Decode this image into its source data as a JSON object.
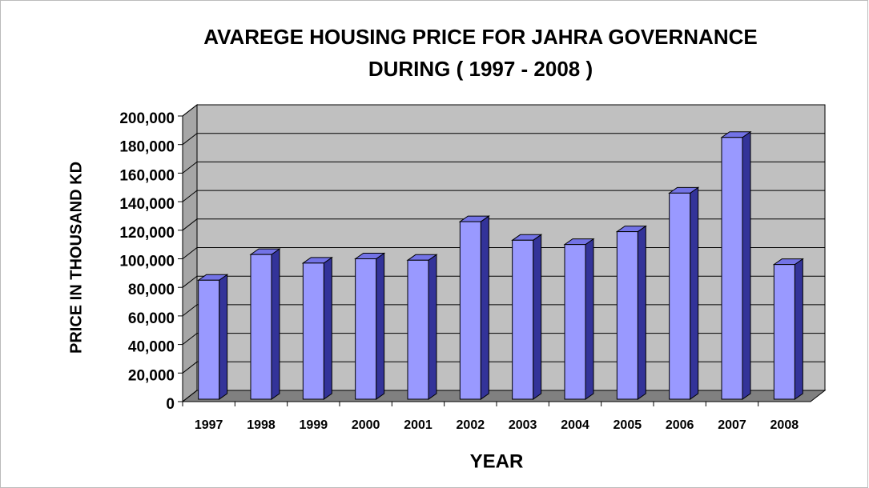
{
  "chart_data": {
    "type": "bar3d",
    "title": [
      "AVAREGE HOUSING PRICE FOR JAHRA GOVERNANCE",
      "DURING ( 1997 - 2008 )"
    ],
    "x_label": "YEAR",
    "y_label": "PRICE IN THOUSAND KD",
    "categories": [
      "1997",
      "1998",
      "1999",
      "2000",
      "2001",
      "2002",
      "2003",
      "2004",
      "2005",
      "2006",
      "2007",
      "2008"
    ],
    "values": [
      85000,
      103000,
      97000,
      100000,
      99000,
      126000,
      113000,
      110000,
      119000,
      146000,
      185000,
      96000
    ],
    "color": "#9999ff",
    "ylim": [
      0,
      200000
    ],
    "yticks": [
      0,
      {
        "value": 20000,
        "label": "20,000"
      },
      {
        "value": 40000,
        "label": "40,000"
      },
      {
        "value": 60000,
        "label": "60,000"
      },
      {
        "value": 80000,
        "label": "80,000"
      },
      {
        "value": 100000,
        "label": "100,000"
      },
      {
        "value": 120000,
        "label": "120,000"
      },
      {
        "value": 140000,
        "label": "140,000"
      },
      {
        "value": 160000,
        "label": "160,000"
      },
      {
        "value": 180000,
        "label": "180,000"
      },
      {
        "value": 200000,
        "label": "200,000"
      }
    ],
    "grid": true
  }
}
